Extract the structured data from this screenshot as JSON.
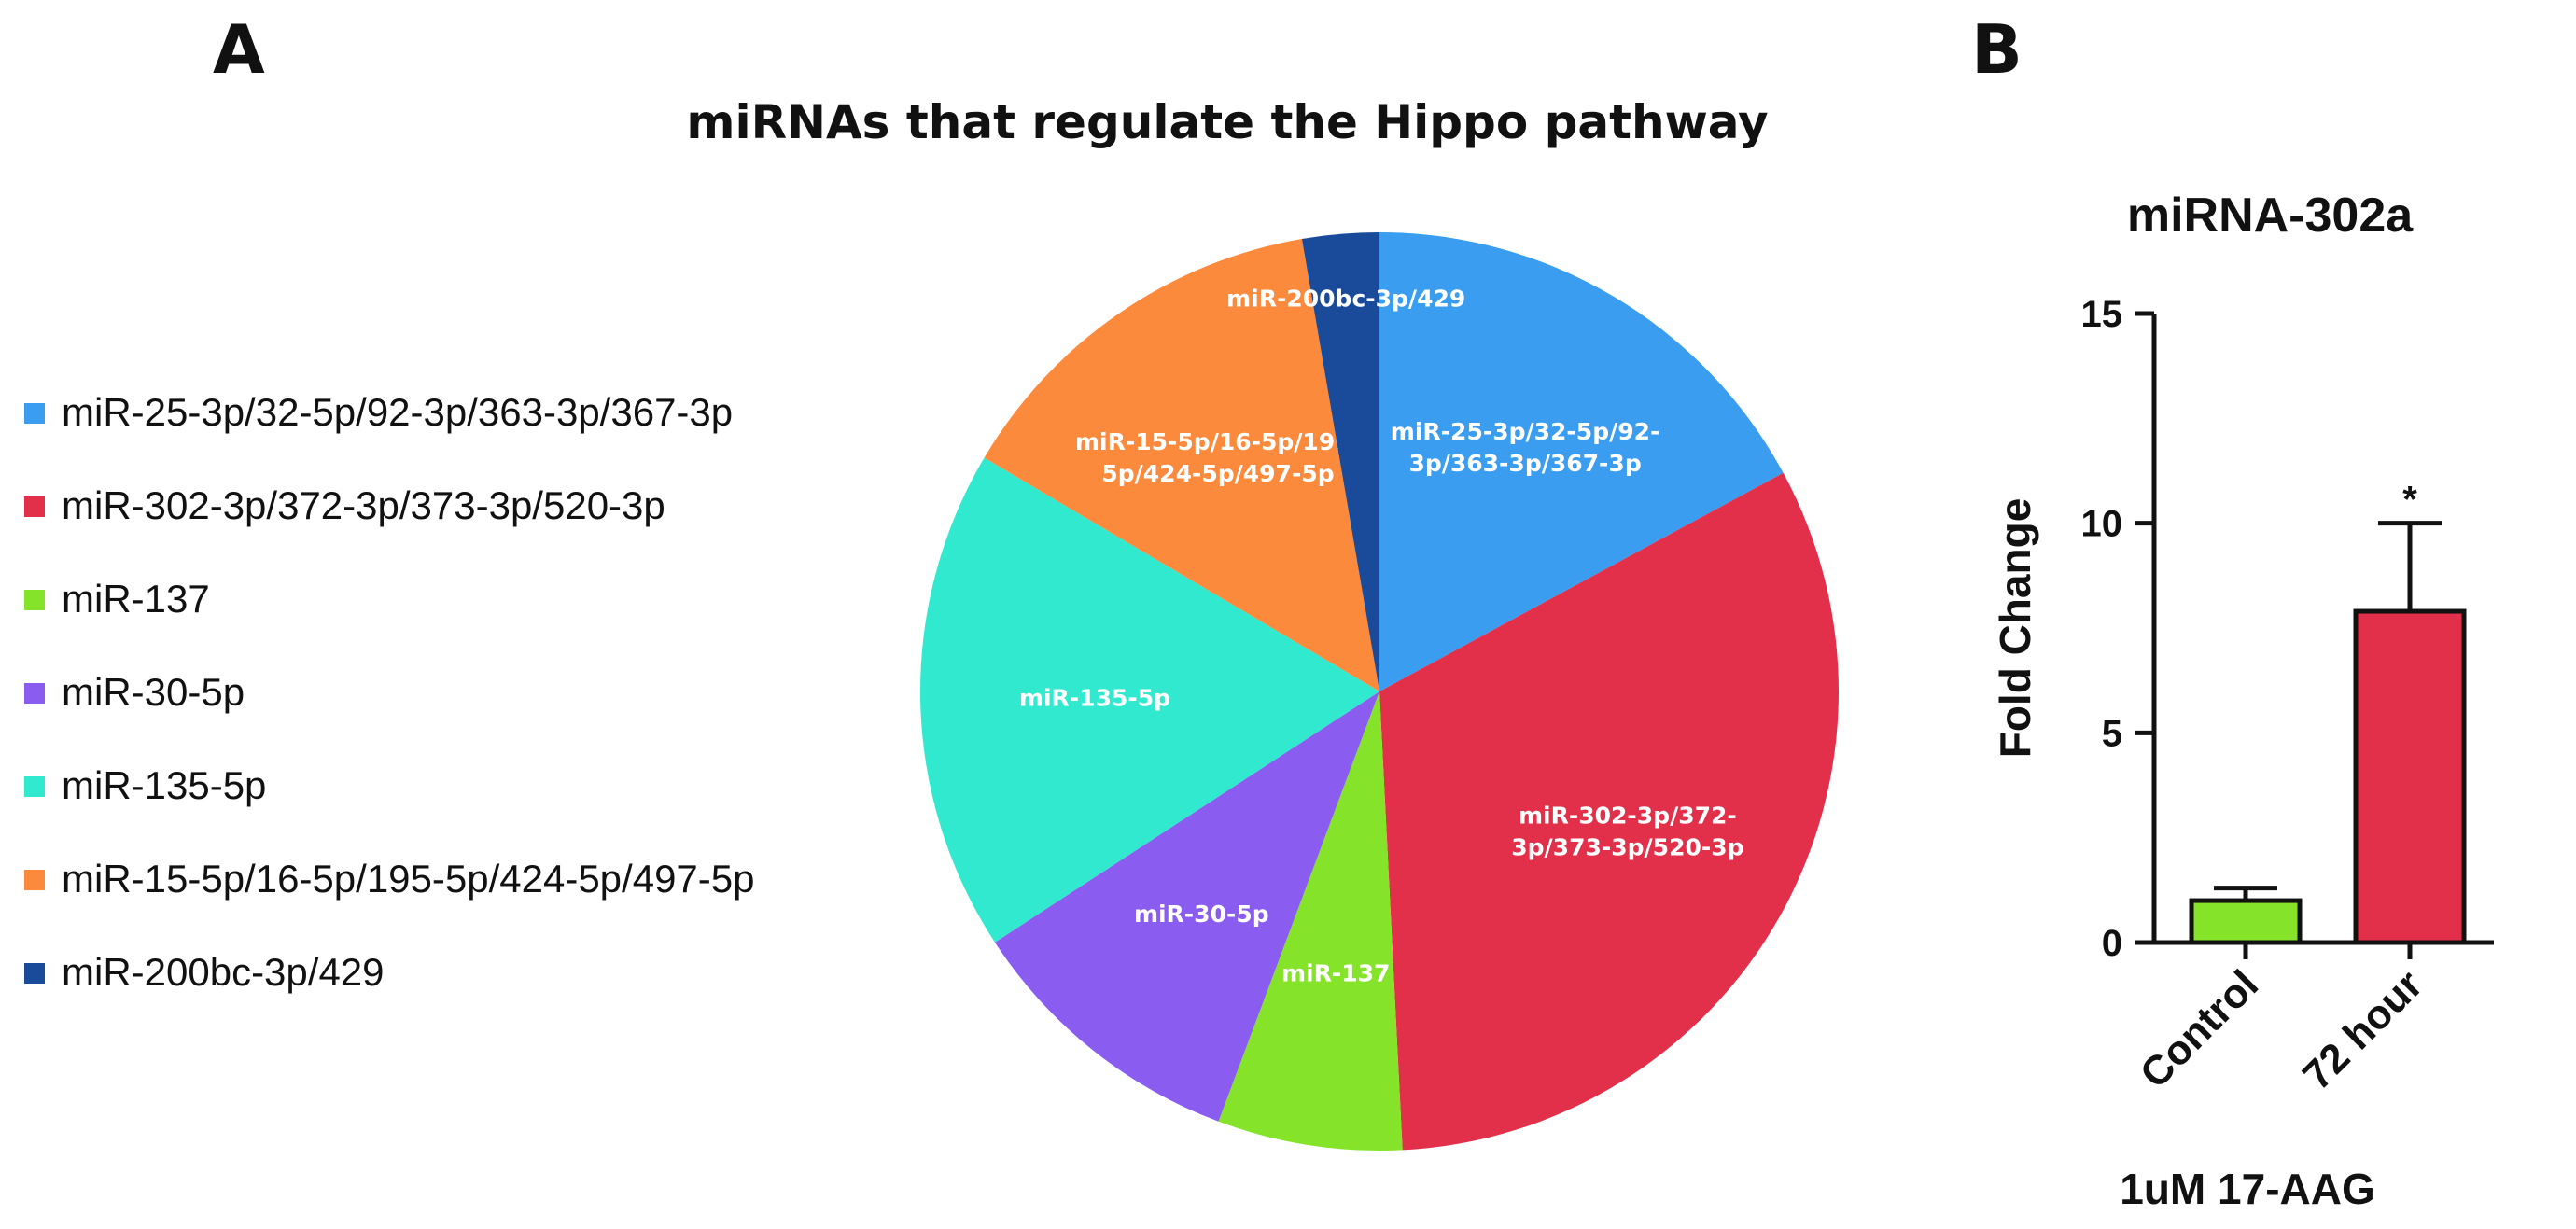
{
  "panels": {
    "a_letter": "A",
    "b_letter": "B"
  },
  "chart_data": [
    {
      "type": "pie",
      "title": "miRNAs that regulate the Hippo pathway",
      "slices": [
        {
          "label": "miR-25-3p/32-5p/92-3p/363-3p/367-3p",
          "label_lines": [
            "miR-25-3p/32-5p/92-",
            "3p/363-3p/367-3p"
          ],
          "value": 17.1,
          "color": "#3a9df0"
        },
        {
          "label": "miR-302-3p/372-3p/373-3p/520-3p",
          "label_lines": [
            "miR-302-3p/372-",
            "3p/373-3p/520-3p"
          ],
          "value": 32.1,
          "color": "#e3304a"
        },
        {
          "label": "miR-137",
          "label_lines": [
            "miR-137"
          ],
          "value": 6.5,
          "color": "#85e42a"
        },
        {
          "label": "miR-30-5p",
          "label_lines": [
            "miR-30-5p"
          ],
          "value": 10.1,
          "color": "#8a5cef"
        },
        {
          "label": "miR-135-5p",
          "label_lines": [
            "miR-135-5p"
          ],
          "value": 17.7,
          "color": "#31e9cf"
        },
        {
          "label": "miR-15-5p/16-5p/195-5p/424-5p/497-5p",
          "label_lines": [
            "miR-15-5p/16-5p/195-",
            "5p/424-5p/497-5p"
          ],
          "value": 13.8,
          "color": "#fb8a3c"
        },
        {
          "label": "miR-200bc-3p/429",
          "label_lines": [
            "miR-200bc-3p/429"
          ],
          "value": 2.7,
          "color": "#1a4a9a"
        }
      ],
      "legend_placement": "left"
    },
    {
      "type": "bar",
      "title": "miRNA-302a",
      "categories": [
        "Control",
        "72 hour"
      ],
      "values": [
        1.0,
        7.9
      ],
      "errors": [
        0.3,
        2.1
      ],
      "colors": [
        "#85e42a",
        "#e3304a"
      ],
      "significance": [
        "",
        "*"
      ],
      "ylabel": "Fold Change",
      "xlabel": "1uM 17-AAG",
      "ylim": [
        0,
        15
      ],
      "yticks": [
        0,
        5,
        10,
        15
      ]
    }
  ]
}
